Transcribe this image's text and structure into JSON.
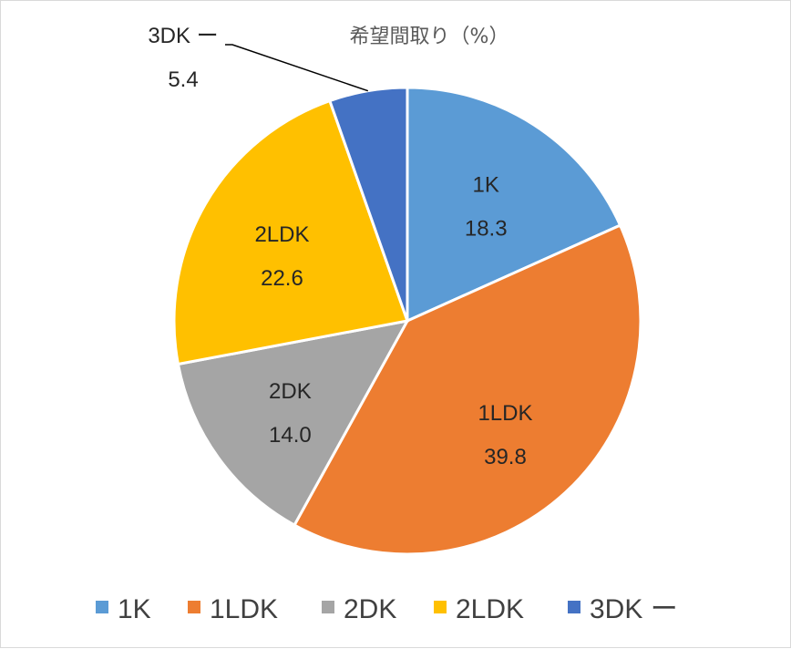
{
  "chart_data": {
    "type": "pie",
    "title": "希望間取り（%）",
    "categories": [
      "1K",
      "1LDK",
      "2DK",
      "2LDK",
      "3DK ー"
    ],
    "values": [
      18.3,
      39.8,
      14.0,
      22.6,
      5.4
    ],
    "value_labels": [
      "18.3",
      "39.8",
      "14.0",
      "22.6",
      "5.4"
    ],
    "colors": [
      "#5b9bd5",
      "#ed7d31",
      "#a5a5a5",
      "#ffc000",
      "#4472c4"
    ],
    "legend_position": "bottom"
  }
}
